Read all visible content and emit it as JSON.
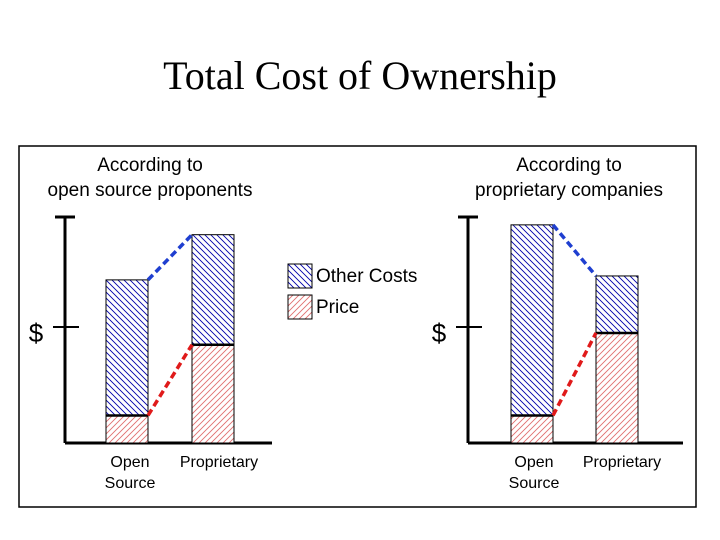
{
  "slide": {
    "title": "Total Cost of Ownership"
  },
  "legend": {
    "items": [
      {
        "label": "Other Costs",
        "pattern": "other"
      },
      {
        "label": "Price",
        "pattern": "price"
      }
    ]
  },
  "colors": {
    "frame": "#000000",
    "other_hatch": "#0000aa",
    "price_hatch": "#e07070",
    "bar_fill": "#ffffff",
    "connector_other": "#1f3fd0",
    "connector_price": "#e01a1a"
  },
  "chart_data": [
    {
      "type": "bar",
      "stacked": true,
      "title": "According to open source proponents",
      "title_lines": [
        "According to",
        "open source proponents"
      ],
      "ylabel": "$",
      "categories": [
        "Open Source",
        "Proprietary"
      ],
      "category_labels": [
        [
          "Open",
          "Source"
        ],
        [
          "Proprietary"
        ]
      ],
      "series": [
        {
          "name": "Price",
          "values": [
            28,
            100
          ]
        },
        {
          "name": "Other Costs",
          "values": [
            138,
            112
          ]
        }
      ],
      "ylim": [
        0,
        230
      ]
    },
    {
      "type": "bar",
      "stacked": true,
      "title": "According to proprietary companies",
      "title_lines": [
        "According to",
        "proprietary companies"
      ],
      "ylabel": "$",
      "categories": [
        "Open Source",
        "Proprietary"
      ],
      "category_labels": [
        [
          "Open",
          "Source"
        ],
        [
          "Proprietary"
        ]
      ],
      "series": [
        {
          "name": "Price",
          "values": [
            28,
            112
          ]
        },
        {
          "name": "Other Costs",
          "values": [
            194,
            58
          ]
        }
      ],
      "ylim": [
        0,
        230
      ]
    }
  ]
}
